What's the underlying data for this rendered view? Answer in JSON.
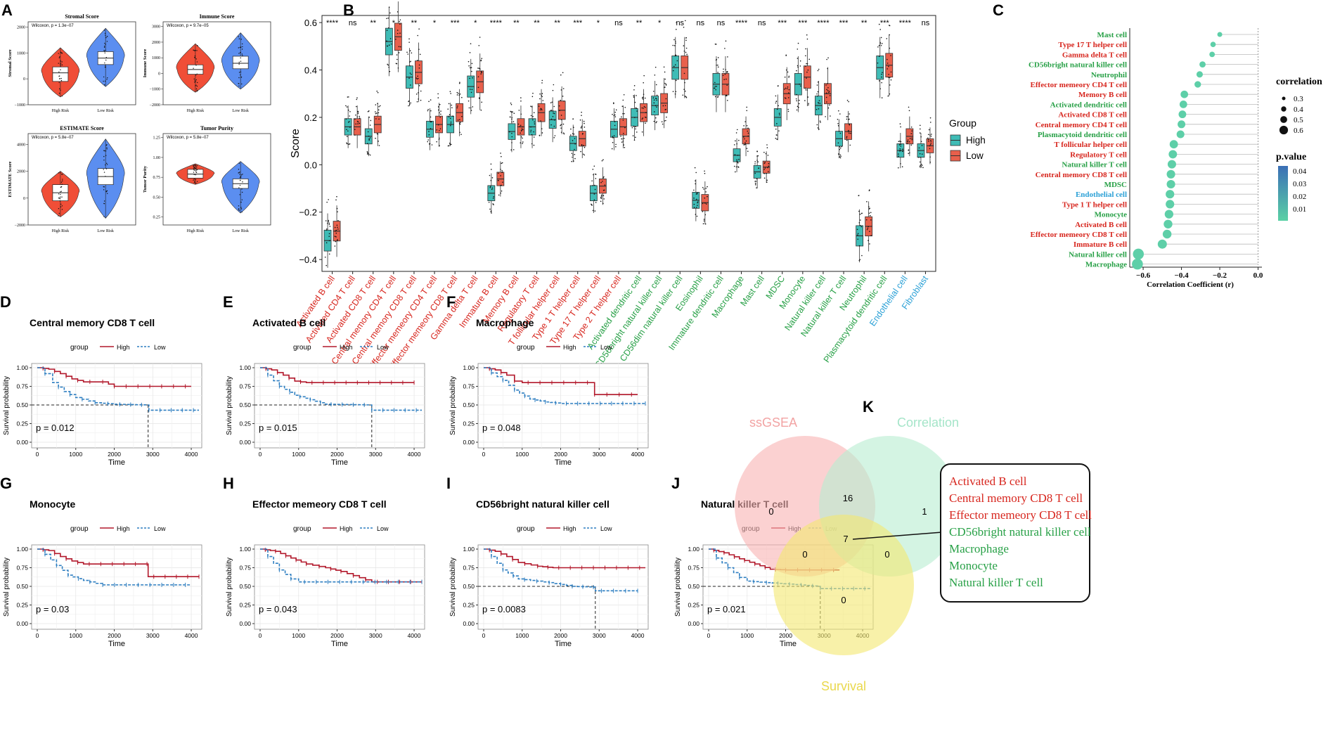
{
  "colors": {
    "high": "#3fbcb6",
    "low": "#e8604c",
    "km_high": "#b2182b",
    "km_low": "#2f7fc1",
    "red": "#d7261e",
    "green": "#27a046",
    "blue": "#2aa0d6",
    "high_risk": "#f04e37",
    "low_risk": "#5b8ef0"
  },
  "panel_a": {
    "label": "A",
    "plots": [
      {
        "title": "Stromal Score",
        "ylabel": "Stromal Score",
        "stat": "Wilcoxon, p = 1.3e−07",
        "yticks": [
          "2000",
          "1000",
          "0",
          "−1000"
        ],
        "xlabels": [
          "High Risk",
          "Low Risk"
        ],
        "ylim": [
          -1000,
          2200
        ],
        "high": {
          "q1": -100,
          "med": 230,
          "q3": 460,
          "min": -700,
          "max": 1200
        },
        "low": {
          "q1": 550,
          "med": 800,
          "q3": 1050,
          "min": -300,
          "max": 1950
        }
      },
      {
        "title": "Immune Score",
        "ylabel": "Immune Score",
        "stat": "Wilcoxon, p = 9.7e−05",
        "yticks": [
          "3000",
          "2000",
          "1000",
          "0",
          "−1000",
          "−2000"
        ],
        "xlabels": [
          "High Risk",
          "Low Risk"
        ],
        "ylim": [
          -2000,
          3300
        ],
        "high": {
          "q1": -50,
          "med": 250,
          "q3": 550,
          "min": -1200,
          "max": 1900
        },
        "low": {
          "q1": 300,
          "med": 650,
          "q3": 1100,
          "min": -1000,
          "max": 2600
        }
      },
      {
        "title": "ESTIMATE Score",
        "ylabel": "ESTIMATE Score",
        "stat": "Wilcoxon, p = 5.8e−07",
        "yticks": [
          "4000",
          "2000",
          "0",
          "−2000"
        ],
        "xlabels": [
          "High Risk",
          "Low Risk"
        ],
        "ylim": [
          -2000,
          4800
        ],
        "high": {
          "q1": -200,
          "med": 400,
          "q3": 1000,
          "min": -1400,
          "max": 2000
        },
        "low": {
          "q1": 1000,
          "med": 1600,
          "q3": 2200,
          "min": -1500,
          "max": 4400
        }
      },
      {
        "title": "Tumor Purity",
        "ylabel": "Tumor Purity",
        "stat": "Wilcoxon, p = 5.8e−07",
        "yticks": [
          "1.25",
          "1.00",
          "0.75",
          "0.50",
          "0.25"
        ],
        "xlabels": [
          "High Risk",
          "Low Risk"
        ],
        "ylim": [
          0.15,
          1.3
        ],
        "high": {
          "q1": 0.74,
          "med": 0.79,
          "q3": 0.85,
          "min": 0.66,
          "max": 0.92
        },
        "low": {
          "q1": 0.61,
          "med": 0.67,
          "q3": 0.73,
          "min": 0.3,
          "max": 0.95
        }
      }
    ]
  },
  "panel_b": {
    "label": "B",
    "ylabel": "Score",
    "yticks": [
      "0.6",
      "0.4",
      "0.2",
      "0.0",
      "−0.2",
      "−0.4"
    ],
    "legend_title": "Group",
    "legend_items": [
      "High",
      "Low"
    ],
    "cells": [
      {
        "name": "Activated B cell",
        "sig": "****",
        "c": "red",
        "h": -0.32,
        "l": -0.28
      },
      {
        "name": "Activated CD4 T cell",
        "sig": "ns",
        "c": "red",
        "h": 0.16,
        "l": 0.16
      },
      {
        "name": "Activated CD8 T cell",
        "sig": "**",
        "c": "red",
        "h": 0.12,
        "l": 0.17
      },
      {
        "name": "Central memory CD4 T cell",
        "sig": "*",
        "c": "red",
        "h": 0.52,
        "l": 0.54
      },
      {
        "name": "Central memory CD8 T cell",
        "sig": "**",
        "c": "red",
        "h": 0.37,
        "l": 0.39
      },
      {
        "name": "Effector memeory CD4 T cell",
        "sig": "*",
        "c": "red",
        "h": 0.15,
        "l": 0.17
      },
      {
        "name": "Effector memeory CD8 T cell",
        "sig": "***",
        "c": "red",
        "h": 0.17,
        "l": 0.22
      },
      {
        "name": "Gamma delta T cell",
        "sig": "*",
        "c": "red",
        "h": 0.33,
        "l": 0.35
      },
      {
        "name": "Immature  B cell",
        "sig": "****",
        "c": "red",
        "h": -0.12,
        "l": -0.06
      },
      {
        "name": "Memory B cell",
        "sig": "**",
        "c": "red",
        "h": 0.14,
        "l": 0.16
      },
      {
        "name": "Regulatory T cell",
        "sig": "**",
        "c": "red",
        "h": 0.16,
        "l": 0.22
      },
      {
        "name": "T follicular helper cell",
        "sig": "**",
        "c": "red",
        "h": 0.19,
        "l": 0.23
      },
      {
        "name": "Type 1 T helper cell",
        "sig": "***",
        "c": "red",
        "h": 0.09,
        "l": 0.11
      },
      {
        "name": "Type 17 T helper cell",
        "sig": "*",
        "c": "red",
        "h": -0.12,
        "l": -0.09
      },
      {
        "name": "Type 2 T helper cell",
        "sig": "ns",
        "c": "red",
        "h": 0.15,
        "l": 0.16
      },
      {
        "name": "Activated dendritic cell",
        "sig": "**",
        "c": "green",
        "h": 0.2,
        "l": 0.22
      },
      {
        "name": "CD56bright natural killer cell",
        "sig": "*",
        "c": "green",
        "h": 0.25,
        "l": 0.26
      },
      {
        "name": "CD56dim natural killer cell",
        "sig": "ns",
        "c": "green",
        "h": 0.41,
        "l": 0.41
      },
      {
        "name": "Eosinophil",
        "sig": "ns",
        "c": "green",
        "h": -0.15,
        "l": -0.16
      },
      {
        "name": "Immature dendritic cell",
        "sig": "ns",
        "c": "green",
        "h": 0.34,
        "l": 0.34
      },
      {
        "name": "Macrophage",
        "sig": "****",
        "c": "green",
        "h": 0.04,
        "l": 0.12
      },
      {
        "name": "Mast cell",
        "sig": "ns",
        "c": "green",
        "h": -0.03,
        "l": -0.01
      },
      {
        "name": "MDSC",
        "sig": "***",
        "c": "green",
        "h": 0.2,
        "l": 0.3
      },
      {
        "name": "Monocyte",
        "sig": "***",
        "c": "green",
        "h": 0.34,
        "l": 0.37
      },
      {
        "name": "Natural killer cell",
        "sig": "****",
        "c": "green",
        "h": 0.25,
        "l": 0.3
      },
      {
        "name": "Natural killer T cell",
        "sig": "***",
        "c": "green",
        "h": 0.11,
        "l": 0.14
      },
      {
        "name": "Neutrophil",
        "sig": "**",
        "c": "green",
        "h": -0.3,
        "l": -0.26
      },
      {
        "name": "Plasmacytoid dendritic cell",
        "sig": "***",
        "c": "green",
        "h": 0.41,
        "l": 0.42
      },
      {
        "name": "Endothelial cell",
        "sig": "****",
        "c": "blue",
        "h": 0.06,
        "l": 0.12
      },
      {
        "name": "Fibroblast",
        "sig": "ns",
        "c": "blue",
        "h": 0.06,
        "l": 0.08
      }
    ]
  },
  "panel_c": {
    "label": "C",
    "xlabel": "Correlation Coefficient (r)",
    "xticks": [
      "−0.6",
      "−0.4",
      "−0.2",
      "0.0"
    ],
    "legend_corr_title": "correlation",
    "legend_corr_items": [
      "0.3",
      "0.4",
      "0.5",
      "0.6"
    ],
    "legend_p_title": "p.value",
    "legend_p_items": [
      "0.04",
      "0.03",
      "0.02",
      "0.01"
    ],
    "items": [
      {
        "name": "Mast cell",
        "c": "green",
        "r": -0.2
      },
      {
        "name": "Type 17 T helper cell",
        "c": "red",
        "r": -0.235
      },
      {
        "name": "Gamma delta T cell",
        "c": "red",
        "r": -0.24
      },
      {
        "name": "CD56bright natural killer cell",
        "c": "green",
        "r": -0.29
      },
      {
        "name": "Neutrophil",
        "c": "green",
        "r": -0.305
      },
      {
        "name": "Effector memeory CD4 T cell",
        "c": "red",
        "r": -0.315
      },
      {
        "name": "Memory B cell",
        "c": "red",
        "r": -0.385
      },
      {
        "name": "Activated dendritic cell",
        "c": "green",
        "r": -0.39
      },
      {
        "name": "Activated CD8 T cell",
        "c": "red",
        "r": -0.395
      },
      {
        "name": "Central memory CD4 T cell",
        "c": "red",
        "r": -0.4
      },
      {
        "name": "Plasmacytoid dendritic cell",
        "c": "green",
        "r": -0.405
      },
      {
        "name": "T follicular helper cell",
        "c": "red",
        "r": -0.44
      },
      {
        "name": "Regulatory T cell",
        "c": "red",
        "r": -0.445
      },
      {
        "name": "Natural killer T cell",
        "c": "green",
        "r": -0.45
      },
      {
        "name": "Central memory CD8 T cell",
        "c": "red",
        "r": -0.455
      },
      {
        "name": "MDSC",
        "c": "green",
        "r": -0.455
      },
      {
        "name": "Endothelial cell",
        "c": "blue",
        "r": -0.46
      },
      {
        "name": "Type 1 T helper cell",
        "c": "red",
        "r": -0.46
      },
      {
        "name": "Monocyte",
        "c": "green",
        "r": -0.465
      },
      {
        "name": "Activated B cell",
        "c": "red",
        "r": -0.47
      },
      {
        "name": "Effector memeory CD8 T cell",
        "c": "red",
        "r": -0.475
      },
      {
        "name": "Immature  B cell",
        "c": "red",
        "r": -0.5
      },
      {
        "name": "Natural killer cell",
        "c": "green",
        "r": -0.625
      },
      {
        "name": "Macrophage",
        "c": "green",
        "r": -0.63
      }
    ]
  },
  "km": {
    "legend_group": "group",
    "legend_high": "High",
    "legend_low": "Low",
    "ylabel": "Survival probability",
    "xlabel": "Time",
    "yticks": [
      "1.00",
      "0.75",
      "0.50",
      "0.25",
      "0.00"
    ],
    "xticks": [
      "0",
      "1000",
      "2000",
      "3000",
      "4000"
    ],
    "panels": [
      {
        "label": "D",
        "title": "Central memory CD8 T cell",
        "p": "p = 0.012",
        "median": 2880,
        "high": [
          [
            0,
            1
          ],
          [
            300,
            0.98
          ],
          [
            600,
            0.92
          ],
          [
            900,
            0.85
          ],
          [
            1200,
            0.81
          ],
          [
            1700,
            0.81
          ],
          [
            2000,
            0.75
          ],
          [
            4000,
            0.75
          ]
        ],
        "low": [
          [
            0,
            1
          ],
          [
            200,
            0.92
          ],
          [
            400,
            0.8
          ],
          [
            700,
            0.68
          ],
          [
            1000,
            0.6
          ],
          [
            1500,
            0.53
          ],
          [
            2000,
            0.51
          ],
          [
            2850,
            0.5
          ],
          [
            2900,
            0.43
          ],
          [
            4200,
            0.43
          ]
        ]
      },
      {
        "label": "E",
        "title": "Activated B cell",
        "p": "p = 0.015",
        "median": 2900,
        "high": [
          [
            0,
            1
          ],
          [
            300,
            0.97
          ],
          [
            600,
            0.9
          ],
          [
            900,
            0.82
          ],
          [
            1200,
            0.8
          ],
          [
            4000,
            0.8
          ]
        ],
        "low": [
          [
            0,
            1
          ],
          [
            200,
            0.9
          ],
          [
            500,
            0.75
          ],
          [
            900,
            0.63
          ],
          [
            1300,
            0.57
          ],
          [
            1700,
            0.51
          ],
          [
            2850,
            0.5
          ],
          [
            2900,
            0.43
          ],
          [
            4200,
            0.43
          ]
        ]
      },
      {
        "label": "F",
        "title": "Macrophage",
        "p": "p = 0.048",
        "median": null,
        "high": [
          [
            0,
            1
          ],
          [
            300,
            0.97
          ],
          [
            600,
            0.9
          ],
          [
            800,
            0.82
          ],
          [
            1000,
            0.8
          ],
          [
            2850,
            0.8
          ],
          [
            2880,
            0.64
          ],
          [
            4000,
            0.64
          ]
        ],
        "low": [
          [
            0,
            1
          ],
          [
            200,
            0.93
          ],
          [
            500,
            0.83
          ],
          [
            800,
            0.7
          ],
          [
            1200,
            0.58
          ],
          [
            1600,
            0.54
          ],
          [
            2000,
            0.52
          ],
          [
            4200,
            0.52
          ]
        ]
      },
      {
        "label": "G",
        "title": "Monocyte",
        "p": "p = 0.03",
        "median": null,
        "high": [
          [
            0,
            1
          ],
          [
            300,
            0.98
          ],
          [
            600,
            0.9
          ],
          [
            900,
            0.84
          ],
          [
            1200,
            0.8
          ],
          [
            2850,
            0.8
          ],
          [
            2880,
            0.63
          ],
          [
            4200,
            0.63
          ]
        ],
        "low": [
          [
            0,
            1
          ],
          [
            200,
            0.93
          ],
          [
            500,
            0.78
          ],
          [
            800,
            0.65
          ],
          [
            1200,
            0.58
          ],
          [
            1700,
            0.52
          ],
          [
            4000,
            0.52
          ]
        ]
      },
      {
        "label": "H",
        "title": "Effector memeory CD8 T cell",
        "p": "p = 0.043",
        "median": null,
        "high": [
          [
            0,
            1
          ],
          [
            400,
            0.97
          ],
          [
            800,
            0.88
          ],
          [
            1200,
            0.8
          ],
          [
            1700,
            0.75
          ],
          [
            2100,
            0.7
          ],
          [
            2900,
            0.56
          ],
          [
            4200,
            0.56
          ]
        ],
        "low": [
          [
            0,
            1
          ],
          [
            200,
            0.9
          ],
          [
            500,
            0.72
          ],
          [
            800,
            0.6
          ],
          [
            1000,
            0.56
          ],
          [
            4200,
            0.56
          ]
        ]
      },
      {
        "label": "I",
        "title": "CD56bright natural killer cell",
        "p": "p = 0.0083",
        "median": 2900,
        "high": [
          [
            0,
            1
          ],
          [
            300,
            0.97
          ],
          [
            600,
            0.9
          ],
          [
            900,
            0.82
          ],
          [
            1400,
            0.77
          ],
          [
            1800,
            0.75
          ],
          [
            4200,
            0.75
          ]
        ],
        "low": [
          [
            0,
            1
          ],
          [
            200,
            0.9
          ],
          [
            500,
            0.72
          ],
          [
            900,
            0.6
          ],
          [
            1700,
            0.55
          ],
          [
            2300,
            0.5
          ],
          [
            2850,
            0.49
          ],
          [
            2900,
            0.44
          ],
          [
            4000,
            0.44
          ]
        ]
      },
      {
        "label": "J",
        "title": "Natural killer T cell",
        "p": "p = 0.021",
        "median": 2900,
        "high": [
          [
            0,
            1
          ],
          [
            400,
            0.95
          ],
          [
            800,
            0.87
          ],
          [
            1200,
            0.8
          ],
          [
            1600,
            0.73
          ],
          [
            2000,
            0.72
          ],
          [
            3400,
            0.72
          ]
        ],
        "low": [
          [
            0,
            1
          ],
          [
            200,
            0.88
          ],
          [
            500,
            0.75
          ],
          [
            800,
            0.62
          ],
          [
            1000,
            0.57
          ],
          [
            1500,
            0.55
          ],
          [
            2100,
            0.53
          ],
          [
            2850,
            0.5
          ],
          [
            2900,
            0.47
          ],
          [
            4200,
            0.47
          ]
        ]
      }
    ]
  },
  "panel_k": {
    "label": "K",
    "sets": [
      "ssGSEA",
      "Correlation",
      "Survival"
    ],
    "counts": {
      "ssgsea_only": "0",
      "correlation_only": "1",
      "survival_only": "0",
      "ssgsea_correlation": "16",
      "ssgsea_survival": "0",
      "correlation_survival": "0",
      "all": "7"
    },
    "callout": [
      {
        "text": "Activated B cell",
        "c": "red"
      },
      {
        "text": "Central memory CD8 T cell",
        "c": "red"
      },
      {
        "text": "Effector memeory CD8 T cell",
        "c": "red"
      },
      {
        "text": "CD56bright natural killer cell",
        "c": "green"
      },
      {
        "text": "Macrophage",
        "c": "green"
      },
      {
        "text": "Monocyte",
        "c": "green"
      },
      {
        "text": "Natural killer T cell",
        "c": "green"
      }
    ]
  }
}
